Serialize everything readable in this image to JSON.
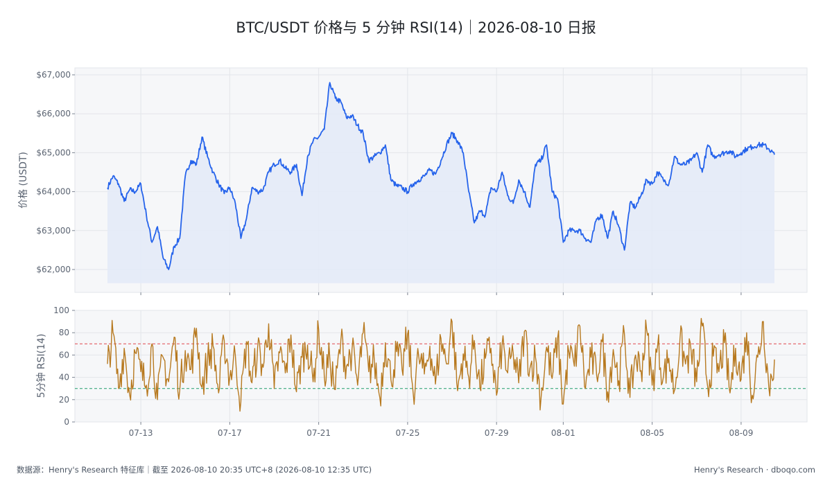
{
  "title": "BTC/USDT 价格与 5 分钟 RSI(14)｜2026-08-10 日报",
  "footer": {
    "source": "数据源：Henry's Research 特征库｜截至 2026-08-10 20:35 UTC+8 (2026-08-10 12:35 UTC)",
    "brand": "Henry's Research · dboqo.com"
  },
  "colors": {
    "price_line": "#2563eb",
    "price_fill": "#e3eaf8",
    "rsi_line": "#b7791f",
    "overbought": "#e0474c",
    "oversold": "#1f9d6a",
    "panel_bg": "#f6f7f9"
  },
  "chart_data": [
    {
      "type": "area",
      "title": "BTC/USDT 价格与 5 分钟 RSI(14)｜2026-08-10 日报",
      "ylabel": "价格 (USDT)",
      "ylim": [
        61650,
        67150
      ],
      "yticks": [
        62000,
        63000,
        64000,
        65000,
        66000,
        67000
      ],
      "ytick_labels": [
        "$62,000",
        "$63,000",
        "$64,000",
        "$65,000",
        "$66,000",
        "$67,000"
      ],
      "xlim": [
        "2026-07-11",
        "2026-08-11"
      ],
      "grid": true,
      "series": [
        {
          "x": [
            "2026-07-11 12:00",
            "2026-07-11 18:00",
            "2026-07-12 00:00",
            "2026-07-12 06:00",
            "2026-07-12 12:00",
            "2026-07-12 18:00",
            "2026-07-13 00:00",
            "2026-07-13 06:00",
            "2026-07-13 12:00",
            "2026-07-13 18:00",
            "2026-07-14 00:00",
            "2026-07-14 06:00",
            "2026-07-14 12:00",
            "2026-07-14 18:00",
            "2026-07-15 00:00",
            "2026-07-15 06:00",
            "2026-07-15 12:00",
            "2026-07-15 18:00",
            "2026-07-16 00:00",
            "2026-07-16 06:00",
            "2026-07-16 12:00",
            "2026-07-16 18:00",
            "2026-07-17 00:00",
            "2026-07-17 06:00",
            "2026-07-17 12:00",
            "2026-07-17 18:00",
            "2026-07-18 00:00",
            "2026-07-18 06:00",
            "2026-07-18 12:00",
            "2026-07-18 18:00",
            "2026-07-19 00:00",
            "2026-07-19 06:00",
            "2026-07-19 12:00",
            "2026-07-19 18:00",
            "2026-07-20 00:00",
            "2026-07-20 06:00",
            "2026-07-20 12:00",
            "2026-07-20 18:00",
            "2026-07-21 00:00",
            "2026-07-21 06:00",
            "2026-07-21 12:00",
            "2026-07-21 18:00",
            "2026-07-22 00:00",
            "2026-07-22 06:00",
            "2026-07-22 12:00",
            "2026-07-22 18:00",
            "2026-07-23 00:00",
            "2026-07-23 06:00",
            "2026-07-23 12:00",
            "2026-07-23 18:00",
            "2026-07-24 00:00",
            "2026-07-24 06:00",
            "2026-07-24 12:00",
            "2026-07-24 18:00",
            "2026-07-25 00:00",
            "2026-07-25 06:00",
            "2026-07-25 12:00",
            "2026-07-25 18:00",
            "2026-07-26 00:00",
            "2026-07-26 06:00",
            "2026-07-26 12:00",
            "2026-07-26 18:00",
            "2026-07-27 00:00",
            "2026-07-27 06:00",
            "2026-07-27 12:00",
            "2026-07-27 18:00",
            "2026-07-28 00:00",
            "2026-07-28 06:00",
            "2026-07-28 12:00",
            "2026-07-28 18:00",
            "2026-07-29 00:00",
            "2026-07-29 06:00",
            "2026-07-29 12:00",
            "2026-07-29 18:00",
            "2026-07-30 00:00",
            "2026-07-30 06:00",
            "2026-07-30 12:00",
            "2026-07-30 18:00",
            "2026-07-31 00:00",
            "2026-07-31 06:00",
            "2026-07-31 12:00",
            "2026-07-31 18:00",
            "2026-08-01 00:00",
            "2026-08-01 06:00",
            "2026-08-01 12:00",
            "2026-08-01 18:00",
            "2026-08-02 00:00",
            "2026-08-02 06:00",
            "2026-08-02 12:00",
            "2026-08-02 18:00",
            "2026-08-03 00:00",
            "2026-08-03 06:00",
            "2026-08-03 12:00",
            "2026-08-03 18:00",
            "2026-08-04 00:00",
            "2026-08-04 06:00",
            "2026-08-04 12:00",
            "2026-08-04 18:00",
            "2026-08-05 00:00",
            "2026-08-05 06:00",
            "2026-08-05 12:00",
            "2026-08-05 18:00",
            "2026-08-06 00:00",
            "2026-08-06 06:00",
            "2026-08-06 12:00",
            "2026-08-06 18:00",
            "2026-08-07 00:00",
            "2026-08-07 06:00",
            "2026-08-07 12:00",
            "2026-08-07 18:00",
            "2026-08-08 00:00",
            "2026-08-08 06:00",
            "2026-08-08 12:00",
            "2026-08-08 18:00",
            "2026-08-09 00:00",
            "2026-08-09 06:00",
            "2026-08-09 12:00",
            "2026-08-09 18:00",
            "2026-08-10 00:00",
            "2026-08-10 06:00",
            "2026-08-10 12:00"
          ],
          "values": [
            64100,
            64400,
            64200,
            63750,
            64050,
            64000,
            64200,
            63400,
            62700,
            63100,
            62300,
            62000,
            62600,
            62800,
            64400,
            64800,
            64700,
            65400,
            64900,
            64500,
            64200,
            63950,
            64100,
            63700,
            62800,
            63300,
            64100,
            64000,
            64050,
            64500,
            64700,
            64800,
            64600,
            64500,
            64700,
            63900,
            64900,
            65300,
            65400,
            65600,
            66800,
            66400,
            66300,
            65900,
            65950,
            65700,
            65500,
            64800,
            64900,
            65000,
            65200,
            64300,
            64150,
            64100,
            64000,
            64200,
            64300,
            64400,
            64550,
            64450,
            64800,
            65200,
            65500,
            65300,
            65000,
            64000,
            63200,
            63500,
            63400,
            64100,
            64000,
            64500,
            63900,
            63700,
            64300,
            64000,
            63600,
            64700,
            64800,
            65200,
            64000,
            63800,
            62700,
            63000,
            63000,
            63000,
            62800,
            62700,
            63300,
            63400,
            62800,
            63500,
            63100,
            62500,
            63700,
            63600,
            63900,
            64300,
            64200,
            64500,
            64300,
            64200,
            64900,
            64700,
            64700,
            64800,
            65000,
            64500,
            65200,
            64900,
            64950,
            65000,
            65050,
            64900,
            65000,
            65100,
            65150,
            65200,
            65200,
            65100,
            64950
          ]
        }
      ]
    },
    {
      "type": "line",
      "ylabel": "5分钟 RSI(14)",
      "ylim": [
        0,
        100
      ],
      "yticks": [
        0,
        20,
        40,
        60,
        80,
        100
      ],
      "xlim": [
        "2026-07-11",
        "2026-08-11"
      ],
      "xticks": [
        "07-13",
        "07-17",
        "07-21",
        "07-25",
        "07-29",
        "08-01",
        "08-05",
        "08-09"
      ],
      "xtick_dates": [
        "2026-07-13",
        "2026-07-17",
        "2026-07-21",
        "2026-07-25",
        "2026-07-29",
        "2026-08-01",
        "2026-08-05",
        "2026-08-09"
      ],
      "reference_lines": [
        {
          "y": 70,
          "style": "dashed",
          "color": "#e0474c"
        },
        {
          "y": 30,
          "style": "dashed",
          "color": "#1f9d6a"
        }
      ],
      "grid": true,
      "series": [
        {
          "x": [
            "2026-07-11 12:00",
            "2026-07-11 18:00",
            "2026-07-12 00:00",
            "2026-07-12 06:00",
            "2026-07-12 12:00",
            "2026-07-12 18:00",
            "2026-07-13 00:00",
            "2026-07-13 06:00",
            "2026-07-13 12:00",
            "2026-07-13 18:00",
            "2026-07-14 00:00",
            "2026-07-14 06:00",
            "2026-07-14 12:00",
            "2026-07-14 18:00",
            "2026-07-15 00:00",
            "2026-07-15 06:00",
            "2026-07-15 12:00",
            "2026-07-15 18:00",
            "2026-07-16 00:00",
            "2026-07-16 06:00",
            "2026-07-16 12:00",
            "2026-07-16 18:00",
            "2026-07-17 00:00",
            "2026-07-17 06:00",
            "2026-07-17 12:00",
            "2026-07-17 18:00",
            "2026-07-18 00:00",
            "2026-07-18 06:00",
            "2026-07-18 12:00",
            "2026-07-18 18:00",
            "2026-07-19 00:00",
            "2026-07-19 06:00",
            "2026-07-19 12:00",
            "2026-07-19 18:00",
            "2026-07-20 00:00",
            "2026-07-20 06:00",
            "2026-07-20 12:00",
            "2026-07-20 18:00",
            "2026-07-21 00:00",
            "2026-07-21 06:00",
            "2026-07-21 12:00",
            "2026-07-21 18:00",
            "2026-07-22 00:00",
            "2026-07-22 06:00",
            "2026-07-22 12:00",
            "2026-07-22 18:00",
            "2026-07-23 00:00",
            "2026-07-23 06:00",
            "2026-07-23 12:00",
            "2026-07-23 18:00",
            "2026-07-24 00:00",
            "2026-07-24 06:00",
            "2026-07-24 12:00",
            "2026-07-24 18:00",
            "2026-07-25 00:00",
            "2026-07-25 06:00",
            "2026-07-25 12:00",
            "2026-07-25 18:00",
            "2026-07-26 00:00",
            "2026-07-26 06:00",
            "2026-07-26 12:00",
            "2026-07-26 18:00",
            "2026-07-27 00:00",
            "2026-07-27 06:00",
            "2026-07-27 12:00",
            "2026-07-27 18:00",
            "2026-07-28 00:00",
            "2026-07-28 06:00",
            "2026-07-28 12:00",
            "2026-07-28 18:00",
            "2026-07-29 00:00",
            "2026-07-29 06:00",
            "2026-07-29 12:00",
            "2026-07-29 18:00",
            "2026-07-30 00:00",
            "2026-07-30 06:00",
            "2026-07-30 12:00",
            "2026-07-30 18:00",
            "2026-07-31 00:00",
            "2026-07-31 06:00",
            "2026-07-31 12:00",
            "2026-07-31 18:00",
            "2026-08-01 00:00",
            "2026-08-01 06:00",
            "2026-08-01 12:00",
            "2026-08-01 18:00",
            "2026-08-02 00:00",
            "2026-08-02 06:00",
            "2026-08-02 12:00",
            "2026-08-02 18:00",
            "2026-08-03 00:00",
            "2026-08-03 06:00",
            "2026-08-03 12:00",
            "2026-08-03 18:00",
            "2026-08-04 00:00",
            "2026-08-04 06:00",
            "2026-08-04 12:00",
            "2026-08-04 18:00",
            "2026-08-05 00:00",
            "2026-08-05 06:00",
            "2026-08-05 12:00",
            "2026-08-05 18:00",
            "2026-08-06 00:00",
            "2026-08-06 06:00",
            "2026-08-06 12:00",
            "2026-08-06 18:00",
            "2026-08-07 00:00",
            "2026-08-07 06:00",
            "2026-08-07 12:00",
            "2026-08-07 18:00",
            "2026-08-08 00:00",
            "2026-08-08 06:00",
            "2026-08-08 12:00",
            "2026-08-08 18:00",
            "2026-08-09 00:00",
            "2026-08-09 06:00",
            "2026-08-09 12:00",
            "2026-08-09 18:00",
            "2026-08-10 00:00",
            "2026-08-10 06:00",
            "2026-08-10 12:00"
          ],
          "values": [
            52,
            80,
            30,
            66,
            24,
            62,
            45,
            33,
            70,
            20,
            58,
            36,
            76,
            28,
            64,
            47,
            84,
            31,
            55,
            68,
            26,
            73,
            40,
            60,
            18,
            72,
            35,
            66,
            49,
            88,
            30,
            62,
            44,
            78,
            27,
            58,
            69,
            36,
            83,
            41,
            57,
            29,
            74,
            50,
            65,
            33,
            80,
            45,
            56,
            22,
            71,
            38,
            63,
            47,
            79,
            26,
            59,
            43,
            68,
            34,
            75,
            52,
            90,
            28,
            61,
            40,
            73,
            31,
            57,
            66,
            24,
            70,
            44,
            62,
            35,
            81,
            48,
            58,
            21,
            67,
            39,
            76,
            16,
            63,
            50,
            86,
            30,
            58,
            42,
            72,
            27,
            65,
            37,
            79,
            22,
            60,
            46,
            83,
            33,
            69,
            40,
            57,
            28,
            74,
            52,
            64,
            36,
            86,
            31,
            59,
            45,
            71,
            26,
            66,
            38,
            80,
            24,
            58,
            90,
            30,
            56
          ]
        }
      ]
    }
  ]
}
